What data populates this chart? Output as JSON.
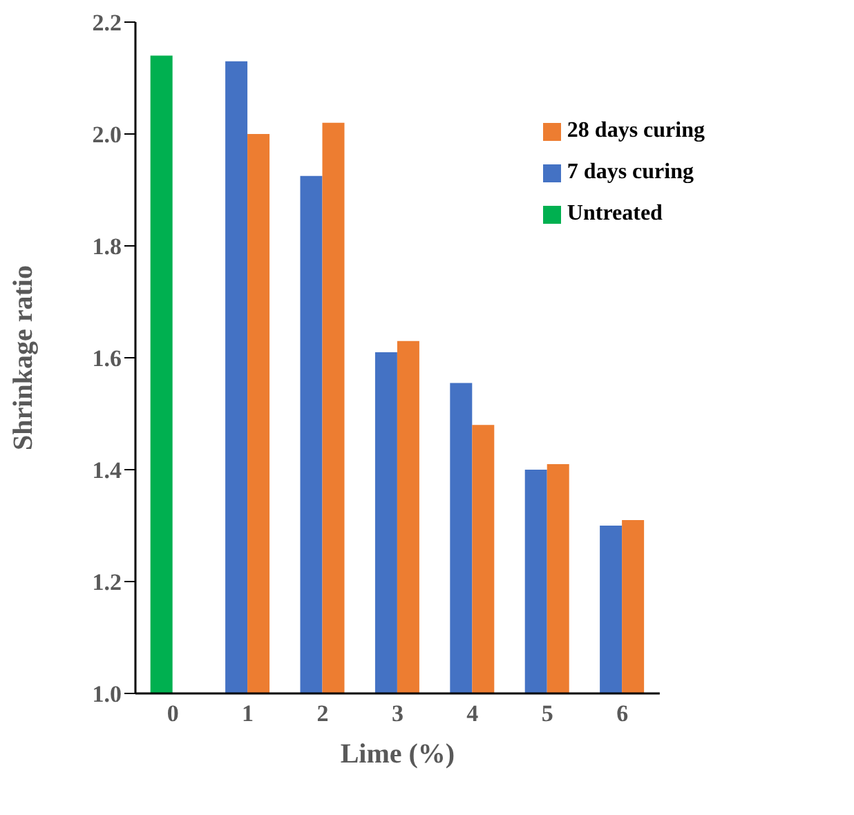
{
  "chart_data": {
    "type": "bar",
    "xlabel": "Lime (%)",
    "ylabel": "Shrinkage ratio",
    "categories": [
      "0",
      "1",
      "2",
      "3",
      "4",
      "5",
      "6"
    ],
    "series": [
      {
        "name": "Untreated",
        "color": "#00b050",
        "values": [
          2.14,
          null,
          null,
          null,
          null,
          null,
          null
        ]
      },
      {
        "name": "7 days curing",
        "color": "#4472c4",
        "values": [
          null,
          2.13,
          1.925,
          1.61,
          1.555,
          1.4,
          1.3
        ]
      },
      {
        "name": "28 days curing",
        "color": "#ed7d31",
        "values": [
          null,
          2.0,
          2.02,
          1.63,
          1.48,
          1.41,
          1.31
        ]
      }
    ],
    "ylim": [
      1.0,
      2.2
    ],
    "yticks": [
      {
        "value": 1.0,
        "label": "1.0"
      },
      {
        "value": 1.2,
        "label": "1.2"
      },
      {
        "value": 1.4,
        "label": "1.4"
      },
      {
        "value": 1.6,
        "label": "1.6"
      },
      {
        "value": 1.8,
        "label": "1.8"
      },
      {
        "value": 2.0,
        "label": "2.0"
      },
      {
        "value": 2.2,
        "label": "2.2"
      }
    ],
    "grid": false,
    "legend": "top right"
  }
}
